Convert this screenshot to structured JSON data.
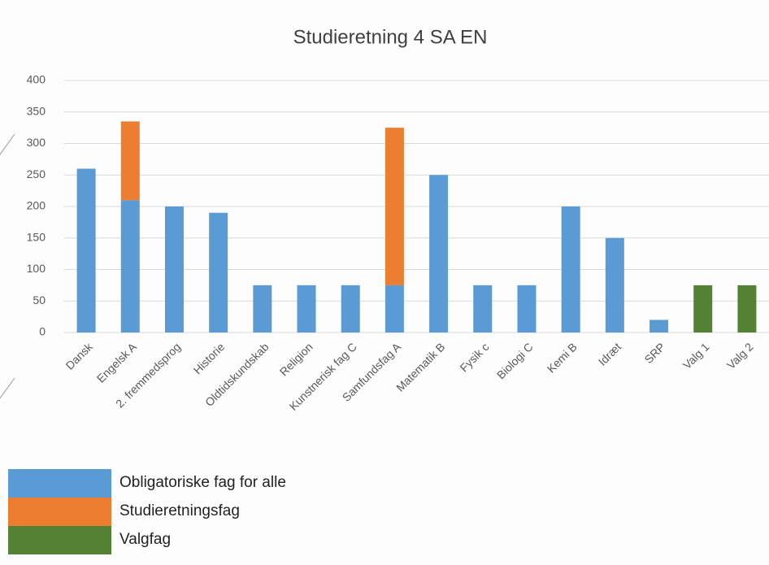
{
  "chart_data": {
    "type": "stacked_bar",
    "title": "Studieretning 4 SA EN",
    "categories": [
      "Dansk",
      "Engelsk A",
      "2. fremmedsprog",
      "Historie",
      "Oldtidskundskab",
      "Religion",
      "Kunstnerisk fag C",
      "Samfundsfag A",
      "Matematik B",
      "Fysik c",
      "Biologi C",
      "Kemi B",
      "Idræt",
      "SRP",
      "Valg 1",
      "Valg 2"
    ],
    "series": [
      {
        "name": "Obligatoriske fag for alle",
        "color": "#5b9bd5",
        "values": [
          260,
          210,
          200,
          190,
          75,
          75,
          75,
          75,
          250,
          75,
          75,
          200,
          150,
          20,
          0,
          0
        ]
      },
      {
        "name": "Studieretningsfag",
        "color": "#ed7d31",
        "values": [
          0,
          125,
          0,
          0,
          0,
          0,
          0,
          250,
          0,
          0,
          0,
          0,
          0,
          0,
          0,
          0
        ]
      },
      {
        "name": "Valgfag",
        "color": "#548235",
        "values": [
          0,
          0,
          0,
          0,
          0,
          0,
          0,
          0,
          0,
          0,
          0,
          0,
          0,
          0,
          75,
          75
        ]
      }
    ],
    "ylim": [
      0,
      400
    ],
    "yticks": [
      0,
      50,
      100,
      150,
      200,
      250,
      300,
      350,
      400
    ],
    "grid": true
  }
}
